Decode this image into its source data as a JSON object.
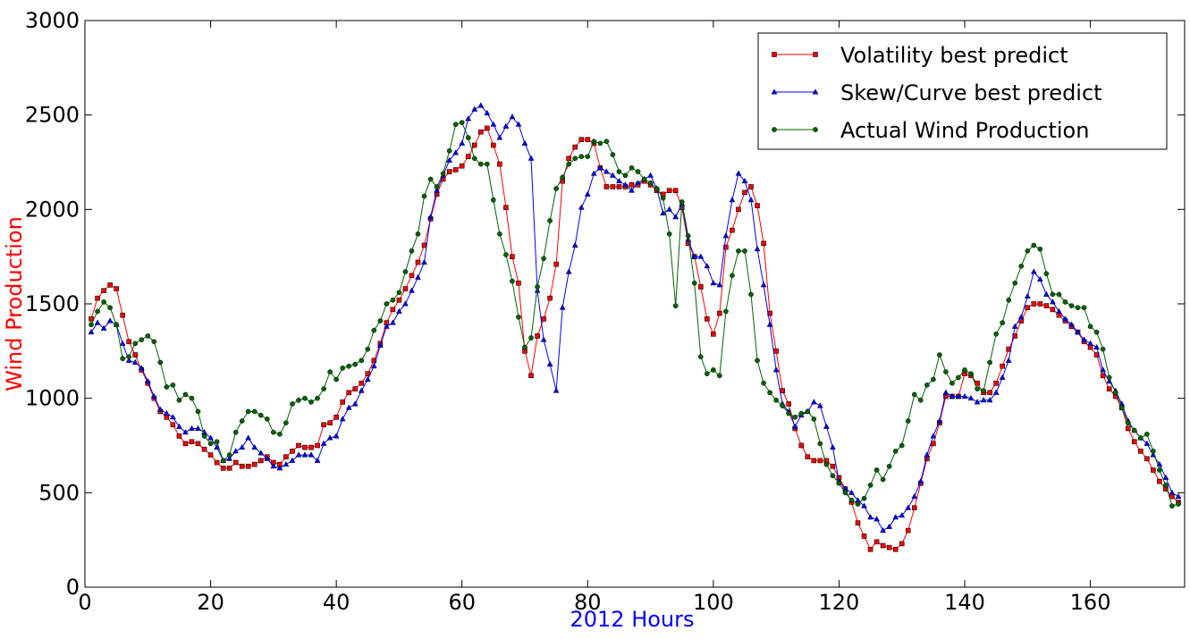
{
  "chart_data": {
    "type": "line",
    "x_label": "2012 Hours",
    "x_label_color": "#0000ff",
    "y_label": "Wind Production",
    "y_label_color": "#ff0000",
    "xlim": [
      0,
      175
    ],
    "ylim": [
      0,
      3000
    ],
    "xticks": [
      0,
      20,
      40,
      60,
      80,
      100,
      120,
      140,
      160
    ],
    "yticks": [
      0,
      500,
      1000,
      1500,
      2000,
      2500,
      3000
    ],
    "legend": "upper right",
    "x": [
      1,
      2,
      3,
      4,
      5,
      6,
      7,
      8,
      9,
      10,
      11,
      12,
      13,
      14,
      15,
      16,
      17,
      18,
      19,
      20,
      21,
      22,
      23,
      24,
      25,
      26,
      27,
      28,
      29,
      30,
      31,
      32,
      33,
      34,
      35,
      36,
      37,
      38,
      39,
      40,
      41,
      42,
      43,
      44,
      45,
      46,
      47,
      48,
      49,
      50,
      51,
      52,
      53,
      54,
      55,
      56,
      57,
      58,
      59,
      60,
      61,
      62,
      63,
      64,
      65,
      66,
      67,
      68,
      69,
      70,
      71,
      72,
      73,
      74,
      75,
      76,
      77,
      78,
      79,
      80,
      81,
      82,
      83,
      84,
      85,
      86,
      87,
      88,
      89,
      90,
      91,
      92,
      93,
      94,
      95,
      96,
      97,
      98,
      99,
      100,
      101,
      102,
      103,
      104,
      105,
      106,
      107,
      108,
      109,
      110,
      111,
      112,
      113,
      114,
      115,
      116,
      117,
      118,
      119,
      120,
      121,
      122,
      123,
      124,
      125,
      126,
      127,
      128,
      129,
      130,
      131,
      132,
      133,
      134,
      135,
      136,
      137,
      138,
      139,
      140,
      141,
      142,
      143,
      144,
      145,
      146,
      147,
      148,
      149,
      150,
      151,
      152,
      153,
      154,
      155,
      156,
      157,
      158,
      159,
      160,
      161,
      162,
      163,
      164,
      165,
      166,
      167,
      168,
      169,
      170,
      171,
      172,
      173,
      174
    ],
    "series": [
      {
        "name": "Volatility best predict",
        "color": "#ff0000",
        "marker": "square",
        "values": [
          1420,
          1530,
          1570,
          1600,
          1580,
          1440,
          1300,
          1230,
          1150,
          1080,
          1000,
          930,
          900,
          860,
          800,
          760,
          770,
          760,
          730,
          700,
          660,
          630,
          630,
          660,
          640,
          640,
          650,
          670,
          690,
          660,
          650,
          690,
          720,
          750,
          740,
          740,
          750,
          860,
          870,
          900,
          980,
          1030,
          1050,
          1080,
          1130,
          1200,
          1290,
          1400,
          1470,
          1520,
          1580,
          1650,
          1720,
          1810,
          1950,
          2080,
          2160,
          2200,
          2210,
          2230,
          2280,
          2340,
          2410,
          2430,
          2340,
          2240,
          2010,
          1750,
          1610,
          1250,
          1120,
          1330,
          1420,
          1530,
          1710,
          2150,
          2270,
          2330,
          2370,
          2370,
          2350,
          2220,
          2120,
          2120,
          2120,
          2120,
          2130,
          2130,
          2150,
          2130,
          2100,
          2080,
          2100,
          2100,
          2010,
          1820,
          1750,
          1590,
          1420,
          1340,
          1450,
          1800,
          1890,
          2000,
          2090,
          2120,
          2020,
          1820,
          1450,
          1250,
          1040,
          970,
          840,
          750,
          690,
          670,
          670,
          670,
          640,
          580,
          520,
          450,
          340,
          270,
          200,
          240,
          220,
          210,
          200,
          230,
          300,
          420,
          550,
          680,
          760,
          870,
          1010,
          1010,
          1010,
          1130,
          1120,
          1080,
          1030,
          1030,
          1080,
          1170,
          1260,
          1330,
          1410,
          1480,
          1500,
          1500,
          1490,
          1470,
          1440,
          1410,
          1380,
          1350,
          1300,
          1270,
          1230,
          1120,
          1050,
          1010,
          950,
          840,
          770,
          720,
          680,
          620,
          560,
          520,
          480,
          450
        ]
      },
      {
        "name": "Skew/Curve best predict",
        "color": "#0000ff",
        "marker": "triangle",
        "values": [
          1350,
          1400,
          1370,
          1410,
          1390,
          1290,
          1200,
          1190,
          1160,
          1090,
          1010,
          940,
          920,
          900,
          850,
          820,
          840,
          840,
          820,
          790,
          740,
          670,
          680,
          720,
          740,
          790,
          740,
          710,
          680,
          640,
          630,
          650,
          670,
          700,
          700,
          700,
          670,
          760,
          790,
          800,
          890,
          950,
          970,
          1040,
          1100,
          1170,
          1280,
          1380,
          1400,
          1460,
          1500,
          1570,
          1640,
          1720,
          1960,
          2100,
          2180,
          2260,
          2300,
          2350,
          2480,
          2530,
          2550,
          2510,
          2450,
          2380,
          2440,
          2490,
          2450,
          2350,
          2270,
          1570,
          1310,
          1180,
          1040,
          1480,
          1670,
          1810,
          2010,
          2080,
          2190,
          2220,
          2200,
          2180,
          2150,
          2130,
          2100,
          2140,
          2160,
          2180,
          2110,
          1980,
          2000,
          1960,
          2030,
          1840,
          1750,
          1750,
          1700,
          1610,
          1600,
          1860,
          2050,
          2190,
          2150,
          2050,
          1790,
          1600,
          1390,
          1150,
          970,
          930,
          850,
          910,
          930,
          980,
          960,
          850,
          740,
          560,
          520,
          500,
          460,
          430,
          370,
          360,
          300,
          320,
          370,
          380,
          420,
          480,
          560,
          700,
          800,
          880,
          1030,
          1010,
          1010,
          1010,
          1000,
          980,
          990,
          990,
          1030,
          1110,
          1200,
          1380,
          1430,
          1540,
          1670,
          1630,
          1550,
          1510,
          1460,
          1420,
          1390,
          1350,
          1310,
          1290,
          1270,
          1150,
          1090,
          1040,
          970,
          880,
          830,
          790,
          760,
          700,
          650,
          580,
          500,
          480
        ]
      },
      {
        "name": "Actual Wind Production",
        "color": "#006400",
        "marker": "circle",
        "values": [
          1390,
          1460,
          1510,
          1480,
          1390,
          1210,
          1220,
          1290,
          1310,
          1330,
          1300,
          1190,
          1060,
          1070,
          990,
          1020,
          1000,
          930,
          800,
          760,
          770,
          670,
          700,
          820,
          880,
          930,
          930,
          910,
          890,
          820,
          810,
          870,
          970,
          990,
          1000,
          980,
          1000,
          1050,
          1140,
          1100,
          1160,
          1170,
          1180,
          1200,
          1260,
          1360,
          1410,
          1500,
          1520,
          1560,
          1670,
          1780,
          1870,
          2070,
          2160,
          2120,
          2190,
          2310,
          2450,
          2460,
          2380,
          2270,
          2240,
          2240,
          2050,
          1870,
          1760,
          1620,
          1430,
          1270,
          1320,
          1590,
          1740,
          1940,
          2110,
          2170,
          2240,
          2270,
          2280,
          2280,
          2360,
          2350,
          2360,
          2290,
          2200,
          2180,
          2220,
          2200,
          2160,
          2140,
          2110,
          2060,
          1870,
          1490,
          2040,
          1860,
          1610,
          1220,
          1130,
          1150,
          1120,
          1460,
          1650,
          1780,
          1780,
          1550,
          1200,
          1080,
          1030,
          990,
          960,
          920,
          900,
          920,
          930,
          890,
          760,
          650,
          590,
          550,
          500,
          460,
          440,
          470,
          540,
          620,
          570,
          640,
          720,
          750,
          880,
          1020,
          990,
          1070,
          1100,
          1230,
          1140,
          1080,
          1110,
          1150,
          1130,
          1050,
          1040,
          1190,
          1340,
          1400,
          1520,
          1610,
          1700,
          1780,
          1810,
          1790,
          1660,
          1550,
          1550,
          1510,
          1490,
          1480,
          1480,
          1380,
          1350,
          1260,
          1110,
          1030,
          950,
          870,
          830,
          790,
          810,
          720,
          620,
          540,
          430,
          440
        ]
      }
    ]
  }
}
